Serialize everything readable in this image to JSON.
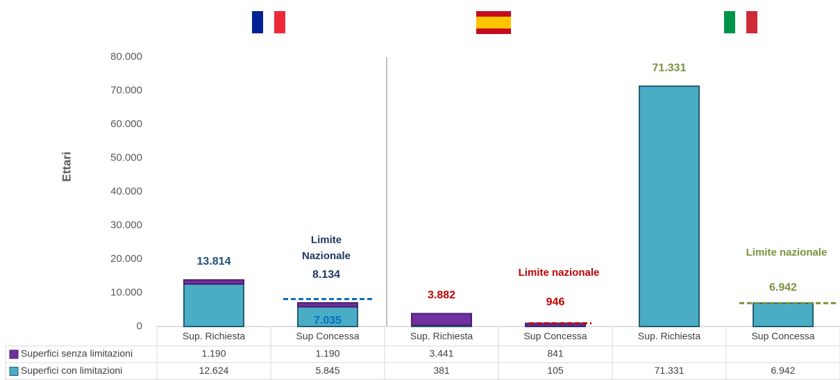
{
  "chart_data": {
    "type": "bar",
    "stacked": true,
    "y_label": "Ettari",
    "categories": [
      "Sup. Richiesta",
      "Sup Concessa",
      "Sup. Richiesta",
      "Sup Concessa",
      "Sup. Richiesta",
      "Sup Concessa"
    ],
    "series": [
      {
        "name": "Superfici senza limitazioni",
        "color": "#7030a0",
        "values": [
          1190,
          1190,
          3441,
          841,
          null,
          null
        ],
        "value_labels": [
          "1.190",
          "1.190",
          "3.441",
          "841",
          null,
          null
        ]
      },
      {
        "name": "Superfici con limitazioni",
        "color": "#4bacc6",
        "values": [
          12624,
          5845,
          381,
          105,
          71331,
          6942
        ],
        "value_labels": [
          "12.624",
          "5.845",
          "381",
          "105",
          "71.331",
          "6.942"
        ]
      }
    ],
    "totals": [
      {
        "value": 13814,
        "label": "13.814",
        "color": "#1f4e79"
      },
      {
        "value": 7035,
        "label": "7.035",
        "color": "#0070c0"
      },
      {
        "value": 3882,
        "label": "3.882",
        "color": "#c00000"
      },
      {
        "value": 946,
        "label": "946",
        "color": "#c00000"
      },
      {
        "value": 71331,
        "label": "71.331",
        "color": "#77933c"
      },
      {
        "value": 6942,
        "label": "6.942",
        "color": "#77933c"
      }
    ],
    "limits": [
      {
        "text": "Limite Nazionale",
        "value": 8134,
        "label": "8.134",
        "color": "#0070c0",
        "text_color": "#1f3864"
      },
      {
        "text": "Limite nazionale",
        "value": 946,
        "color": "#c00000",
        "text_color": "#c00000"
      },
      {
        "text": "Limite nazionale",
        "value": 6942,
        "color": "#77933c",
        "text_color": "#77933c"
      }
    ],
    "ylim": [
      0,
      80000
    ],
    "yticks": [
      0,
      {
        "value": 10000,
        "label": "10.000"
      },
      {
        "value": 20000,
        "label": "20.000"
      },
      {
        "value": 30000,
        "label": "30.000"
      },
      {
        "value": 40000,
        "label": "40.000"
      },
      {
        "value": 50000,
        "label": "50.000"
      },
      {
        "value": 60000,
        "label": "60.000"
      },
      {
        "value": 70000,
        "label": "70.000"
      },
      {
        "value": 80000,
        "label": "80.000"
      }
    ]
  }
}
